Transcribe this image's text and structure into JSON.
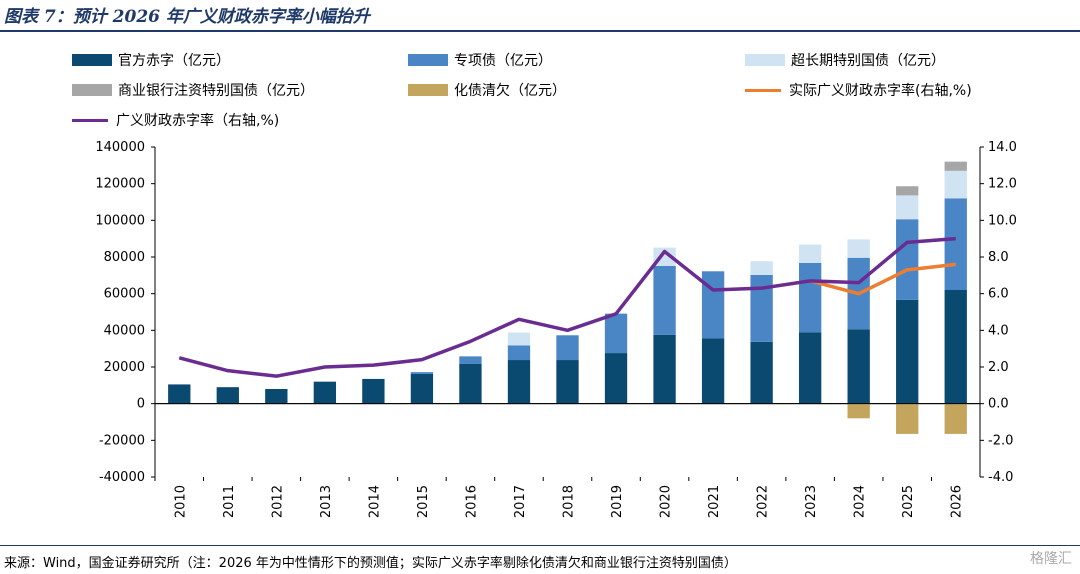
{
  "title": "图表 7：预计 2026 年广义财政赤字率小幅抬升",
  "source": "来源：Wind，国金证券研究所（注：2026 年为中性情形下的预测值；实际广义赤字率剔除化债清欠和商业银行注资特别国债）",
  "watermark": "格隆汇",
  "legend": [
    {
      "label": "官方赤字（亿元）",
      "color": "#0b4a70",
      "kind": "bar"
    },
    {
      "label": "专项债（亿元）",
      "color": "#4a86c5",
      "kind": "bar"
    },
    {
      "label": "超长期特别国债（亿元）",
      "color": "#cfe3f3",
      "kind": "bar"
    },
    {
      "label": "商业银行注资特别国债（亿元）",
      "color": "#a6a6a6",
      "kind": "bar"
    },
    {
      "label": "化债清欠（亿元）",
      "color": "#c4a55e",
      "kind": "bar"
    },
    {
      "label": "实际广义财政赤字率(右轴,%)",
      "color": "#ed7d31",
      "kind": "line"
    },
    {
      "label": "广义财政赤字率（右轴,%)",
      "color": "#6a2c91",
      "kind": "line"
    }
  ],
  "chart_data": {
    "type": "bar",
    "title": "预计 2026 年广义财政赤字率小幅抬升",
    "categories": [
      "2010",
      "2011",
      "2012",
      "2013",
      "2014",
      "2015",
      "2016",
      "2017",
      "2018",
      "2019",
      "2020",
      "2021",
      "2022",
      "2023",
      "2024",
      "2025",
      "2026"
    ],
    "ylim": [
      -40000,
      140000
    ],
    "yticks": [
      -40000,
      -20000,
      0,
      20000,
      40000,
      60000,
      80000,
      100000,
      120000,
      140000
    ],
    "y2lim": [
      -4.0,
      14.0
    ],
    "y2ticks": [
      -4.0,
      -2.0,
      0.0,
      2.0,
      4.0,
      6.0,
      8.0,
      10.0,
      12.0,
      14.0
    ],
    "stacked": true,
    "grid": false,
    "legend_position": "top",
    "series": [
      {
        "name": "官方赤字（亿元）",
        "axis": "left",
        "type": "bar",
        "color": "#0b4a70",
        "values": [
          10500,
          9000,
          8000,
          12000,
          13500,
          16200,
          21800,
          23800,
          23800,
          27600,
          37600,
          35700,
          33700,
          38800,
          40600,
          56600,
          62000
        ]
      },
      {
        "name": "专项债（亿元）",
        "axis": "left",
        "type": "bar",
        "color": "#4a86c5",
        "values": [
          0,
          0,
          0,
          0,
          0,
          1000,
          4000,
          8000,
          13500,
          21500,
          37500,
          36500,
          36500,
          38000,
          39000,
          44000,
          50000
        ]
      },
      {
        "name": "超长期特别国债（亿元）",
        "axis": "left",
        "type": "bar",
        "color": "#cfe3f3",
        "values": [
          0,
          0,
          0,
          0,
          0,
          0,
          0,
          7000,
          0,
          0,
          10000,
          0,
          7500,
          10000,
          10000,
          13000,
          15000
        ]
      },
      {
        "name": "商业银行注资特别国债（亿元）",
        "axis": "left",
        "type": "bar",
        "color": "#a6a6a6",
        "values": [
          0,
          0,
          0,
          0,
          0,
          0,
          0,
          0,
          0,
          0,
          0,
          0,
          0,
          0,
          0,
          5000,
          5000
        ]
      },
      {
        "name": "化债清欠（亿元）",
        "axis": "left",
        "type": "bar",
        "color": "#c4a55e",
        "values": [
          0,
          0,
          0,
          0,
          0,
          0,
          0,
          0,
          0,
          0,
          0,
          0,
          0,
          0,
          -8000,
          -16500,
          -16500
        ]
      },
      {
        "name": "实际广义财政赤字率(右轴,%)",
        "axis": "right",
        "type": "line",
        "color": "#ed7d31",
        "values": [
          null,
          null,
          null,
          null,
          null,
          null,
          null,
          null,
          null,
          null,
          null,
          null,
          null,
          6.7,
          6.0,
          7.3,
          7.6
        ]
      },
      {
        "name": "广义财政赤字率（右轴,%)",
        "axis": "right",
        "type": "line",
        "color": "#6a2c91",
        "values": [
          2.5,
          1.8,
          1.5,
          2.0,
          2.1,
          2.4,
          3.4,
          4.6,
          4.0,
          4.9,
          8.3,
          6.2,
          6.3,
          6.7,
          6.6,
          8.8,
          9.0
        ]
      }
    ]
  }
}
